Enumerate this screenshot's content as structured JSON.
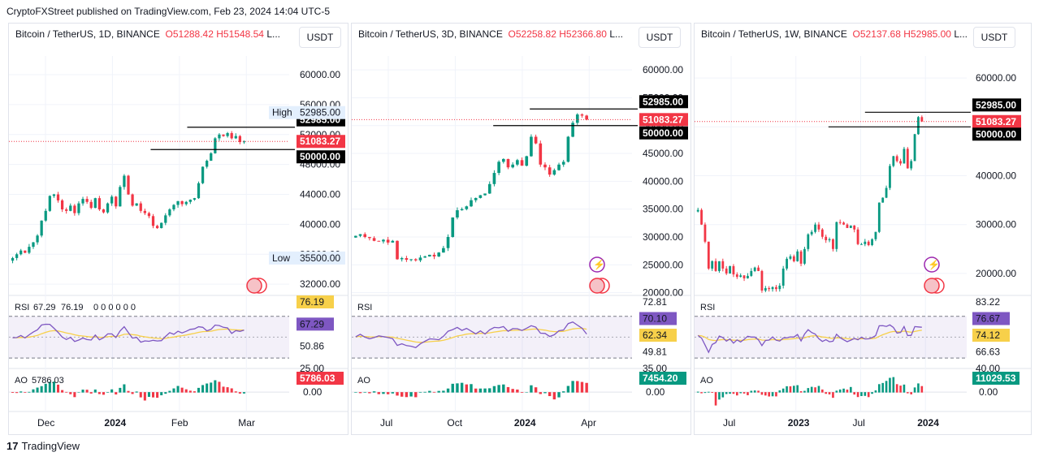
{
  "header": {
    "text": "CryptoFXStreet published on TradingView.com, Feb 23, 2024 14:04 UTC-5"
  },
  "footer": {
    "brand": "TradingView",
    "logo": "17"
  },
  "colors": {
    "up": "#089981",
    "down": "#f23645",
    "rsi": "#7e57c2",
    "rsi_ma": "#f7d04a",
    "grid": "#f0f3fa"
  },
  "chart_data": [
    {
      "type": "candlestick",
      "symbol": "Bitcoin / TetherUS, 1D, BINANCE",
      "open_label": "O51288.42",
      "high_label": "H51548.54",
      "more": "L...",
      "currency": "USDT",
      "ylim": [
        30500,
        62500
      ],
      "y_ticks": [
        32000,
        36000,
        40000,
        44000,
        48000,
        52000,
        56000,
        60000
      ],
      "y_tick_labels": [
        "32000.00",
        "36000.00",
        "40000.00",
        "44000.00",
        "48000.00",
        "52000.00",
        "56000.00",
        "60000.00"
      ],
      "x_ticks": [
        "Dec",
        "2024",
        "Feb",
        "Mar"
      ],
      "high_marker": {
        "label": "High",
        "value": "52985.00"
      },
      "low_marker": {
        "label": "Low",
        "value": "35500.00"
      },
      "levels": [
        {
          "value": 52985,
          "label": "52985.00",
          "style": "black"
        },
        {
          "value": 51083.27,
          "label": "51083.27",
          "style": "red"
        },
        {
          "value": 50000,
          "label": "50000.00",
          "style": "black"
        }
      ],
      "closes": [
        35500,
        36000,
        36500,
        36200,
        37000,
        37600,
        38500,
        40500,
        41800,
        43800,
        44000,
        43200,
        42000,
        41800,
        42500,
        41500,
        42800,
        43400,
        43000,
        42200,
        43500,
        42000,
        41600,
        42800,
        43700,
        42400,
        45000,
        46500,
        44000,
        42500,
        42800,
        41800,
        41500,
        41100,
        39800,
        39500,
        40200,
        41200,
        42000,
        42600,
        43100,
        42700,
        43000,
        43300,
        43500,
        45500,
        47700,
        48500,
        49500,
        51500,
        52000,
        51800,
        52200,
        51500,
        51800,
        51000,
        51083
      ],
      "rsi": {
        "value": "67.29",
        "ma": "76.19",
        "extra": "0 0 0 0 0 0",
        "level_labels": [
          "76.19",
          "67.29",
          "50.86",
          "25.00"
        ]
      },
      "ao": {
        "label": "AO",
        "value": "5786.03",
        "zero": "0.00"
      }
    },
    {
      "type": "candlestick",
      "symbol": "Bitcoin / TetherUS, 3D, BINANCE",
      "open_label": "O52258.82",
      "high_label": "H52366.80",
      "more": "L...",
      "currency": "USDT",
      "ylim": [
        19500,
        62500
      ],
      "y_ticks": [
        20000,
        25000,
        30000,
        35000,
        40000,
        45000,
        50000,
        55000,
        60000
      ],
      "y_tick_labels": [
        "20000.00",
        "25000.00",
        "30000.00",
        "35000.00",
        "40000.00",
        "45000.00",
        "50000.00",
        "55000.00",
        "60000.00"
      ],
      "x_ticks": [
        "Jul",
        "Oct",
        "2024",
        "Apr"
      ],
      "levels": [
        {
          "value": 52985,
          "label": "52985.00",
          "style": "black"
        },
        {
          "value": 51083.27,
          "label": "51083.27",
          "style": "red"
        },
        {
          "value": 50000,
          "label": "50000.00",
          "style": "black"
        }
      ],
      "closes": [
        30200,
        30500,
        30000,
        29800,
        29300,
        29200,
        29500,
        29000,
        29300,
        26000,
        26200,
        25900,
        26000,
        25800,
        26300,
        26500,
        26800,
        26500,
        27200,
        28000,
        30000,
        33500,
        34800,
        35000,
        35500,
        36600,
        37000,
        37500,
        37800,
        39500,
        41500,
        43500,
        44000,
        42500,
        43000,
        43800,
        42800,
        44500,
        48000,
        46800,
        43000,
        42500,
        41200,
        42000,
        43000,
        43500,
        48000,
        50500,
        52000,
        51800,
        51083
      ],
      "rsi": {
        "label": "RSI",
        "level_labels": [
          "72.81",
          "70.10",
          "62.34",
          "49.81",
          "35.00"
        ]
      },
      "ao": {
        "label": "AO",
        "value": "7454.20",
        "zero": "0.00"
      }
    },
    {
      "type": "candlestick",
      "symbol": "Bitcoin / TetherUS, 1W, BINANCE",
      "open_label": "O52137.68",
      "high_label": "H52985.00",
      "more": "L...",
      "currency": "USDT",
      "ylim": [
        15500,
        64500
      ],
      "y_ticks": [
        20000,
        30000,
        40000,
        50000,
        60000
      ],
      "y_tick_labels": [
        "20000.00",
        "30000.00",
        "40000.00",
        "50000.00",
        "60000.00"
      ],
      "x_ticks": [
        "Jul",
        "2023",
        "Jul",
        "2024"
      ],
      "levels": [
        {
          "value": 52985,
          "label": "52985.00",
          "style": "black"
        },
        {
          "value": 51083.27,
          "label": "51083.27",
          "style": "red"
        },
        {
          "value": 50000,
          "label": "50000.00",
          "style": "black"
        }
      ],
      "closes": [
        33000,
        30000,
        26500,
        21000,
        22500,
        20500,
        22500,
        21000,
        20000,
        21500,
        19800,
        19300,
        19600,
        19000,
        19500,
        20500,
        21200,
        20500,
        16500,
        17000,
        16800,
        17200,
        16800,
        17500,
        21000,
        23000,
        23500,
        22500,
        24500,
        22000,
        25000,
        28000,
        28500,
        30000,
        29000,
        27500,
        26800,
        27000,
        25000,
        30500,
        30400,
        30000,
        29300,
        29800,
        29000,
        26000,
        26000,
        26500,
        25800,
        27000,
        28500,
        34500,
        35500,
        37500,
        42000,
        44000,
        43000,
        42500,
        45500,
        41500,
        43000,
        48500,
        52000,
        51083
      ],
      "rsi": {
        "label": "RSI",
        "level_labels": [
          "83.22",
          "76.67",
          "74.12",
          "66.63",
          "40.00"
        ]
      },
      "ao": {
        "label": "AO",
        "value": "11029.53",
        "zero": "0.00"
      }
    }
  ]
}
